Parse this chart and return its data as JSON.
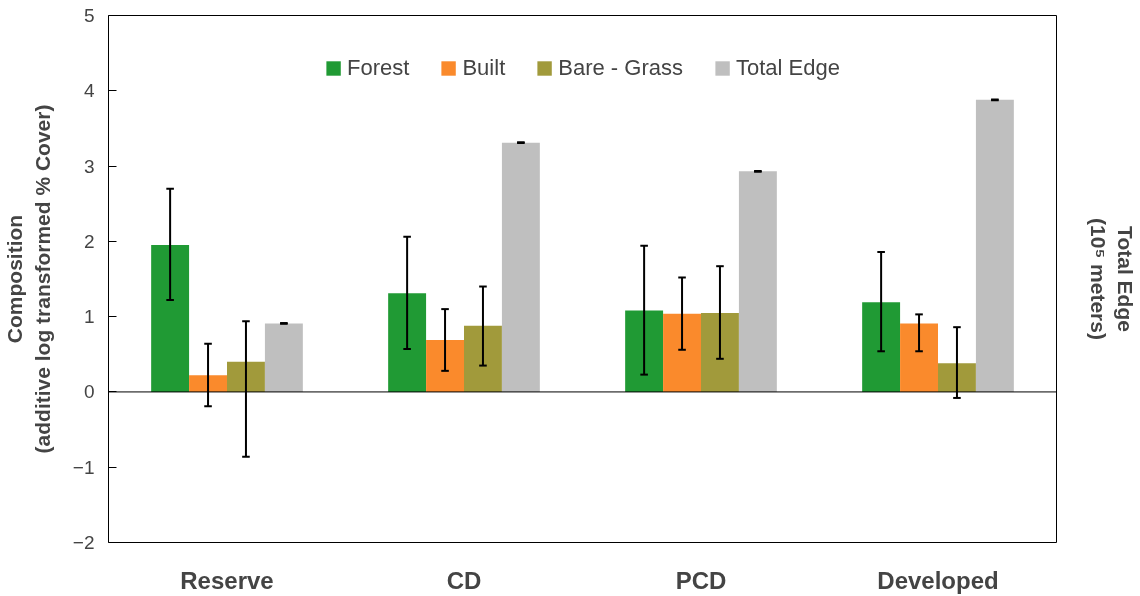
{
  "chart_data": {
    "type": "bar",
    "ylabel": "Composition\n(additive log transformed % Cover)",
    "y2label": "Total Edge\n(10⁵ meters)",
    "categories": [
      "Reserve",
      "CD",
      "PCD",
      "Developed"
    ],
    "series": [
      {
        "name": "Forest",
        "color": "#209a34",
        "values": [
          1.95,
          1.31,
          1.08,
          1.19
        ],
        "errors": [
          [
            1.22,
            2.7
          ],
          [
            0.57,
            2.06
          ],
          [
            0.23,
            1.94
          ],
          [
            0.54,
            1.86
          ]
        ]
      },
      {
        "name": "Built",
        "color": "#fa8a2c",
        "values": [
          0.22,
          0.69,
          1.04,
          0.91
        ],
        "errors": [
          [
            -0.19,
            0.64
          ],
          [
            0.28,
            1.1
          ],
          [
            0.56,
            1.52
          ],
          [
            0.54,
            1.03
          ]
        ]
      },
      {
        "name": "Bare - Grass",
        "color": "#a19a3b",
        "values": [
          0.4,
          0.88,
          1.05,
          0.38
        ],
        "errors": [
          [
            -0.86,
            0.94
          ],
          [
            0.35,
            1.4
          ],
          [
            0.44,
            1.67
          ],
          [
            -0.08,
            0.86
          ]
        ]
      },
      {
        "name": "Total Edge",
        "color": "#bfbfbf",
        "values": [
          0.91,
          3.31,
          2.93,
          3.88
        ],
        "errors": [
          0.005,
          0.005,
          0.005,
          0.005
        ]
      }
    ],
    "ylim": [
      -2,
      5
    ],
    "yticks": [
      -2,
      -1,
      0,
      1,
      2,
      3,
      4,
      5
    ],
    "ref_lines": [
      {
        "axis": "y",
        "value": 0,
        "label": null
      }
    ],
    "legend": "top",
    "grid": false
  }
}
